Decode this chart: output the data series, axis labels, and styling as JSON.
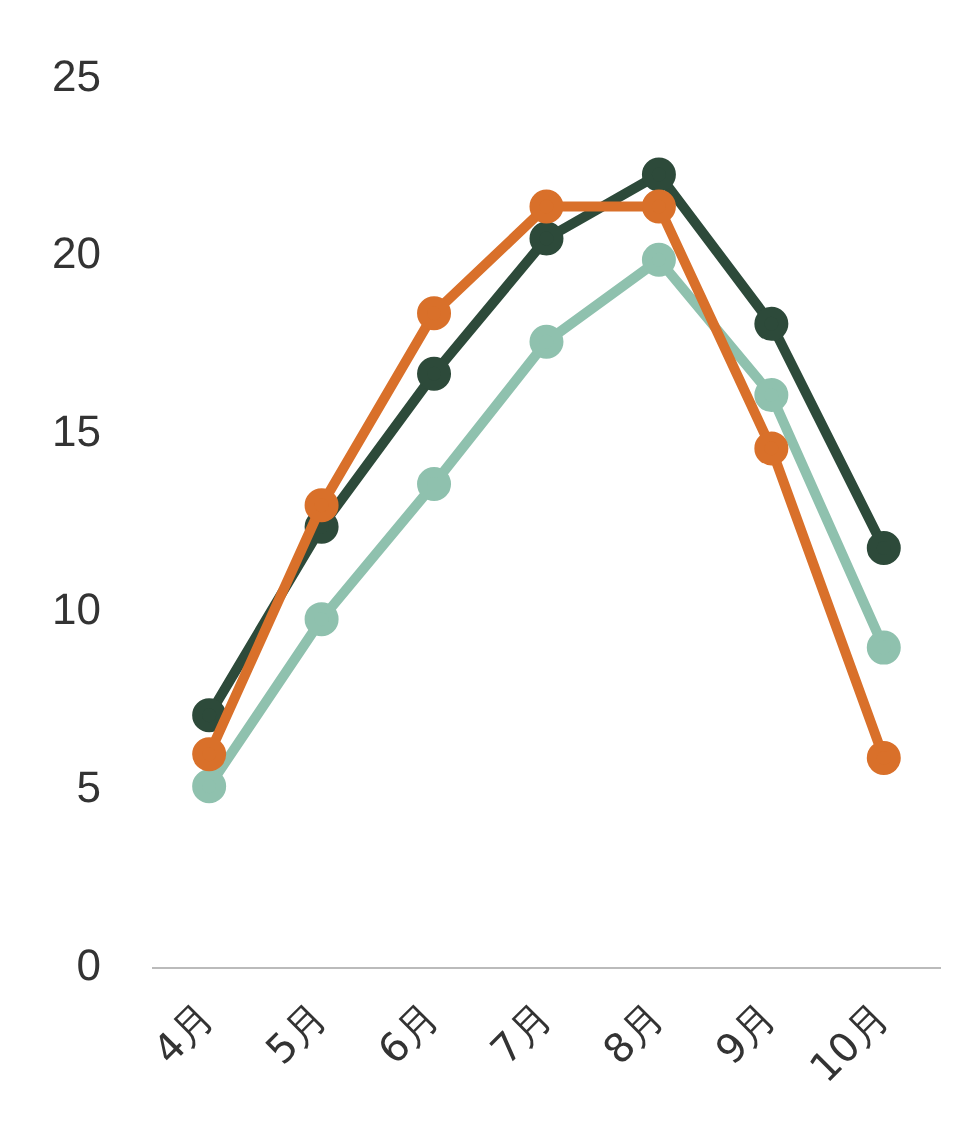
{
  "chart_data": {
    "type": "line",
    "categories": [
      "4月",
      "5月",
      "6月",
      "7月",
      "8月",
      "9月",
      "10月"
    ],
    "series": [
      {
        "color": "#d9702a",
        "values": [
          6.0,
          13.0,
          18.4,
          21.4,
          21.4,
          14.6,
          5.9
        ]
      },
      {
        "color": "#8fc1ae",
        "values": [
          5.1,
          9.8,
          13.6,
          17.6,
          19.9,
          16.1,
          9.0
        ]
      },
      {
        "color": "#2d4a3a",
        "values": [
          7.1,
          12.4,
          16.7,
          20.5,
          22.3,
          18.1,
          11.8
        ]
      }
    ],
    "ylim": [
      0,
      25
    ],
    "yticks": [
      0,
      5,
      10,
      15,
      20,
      25
    ],
    "grid": false,
    "legend": false,
    "marker": "circle",
    "line_style": "solid"
  }
}
